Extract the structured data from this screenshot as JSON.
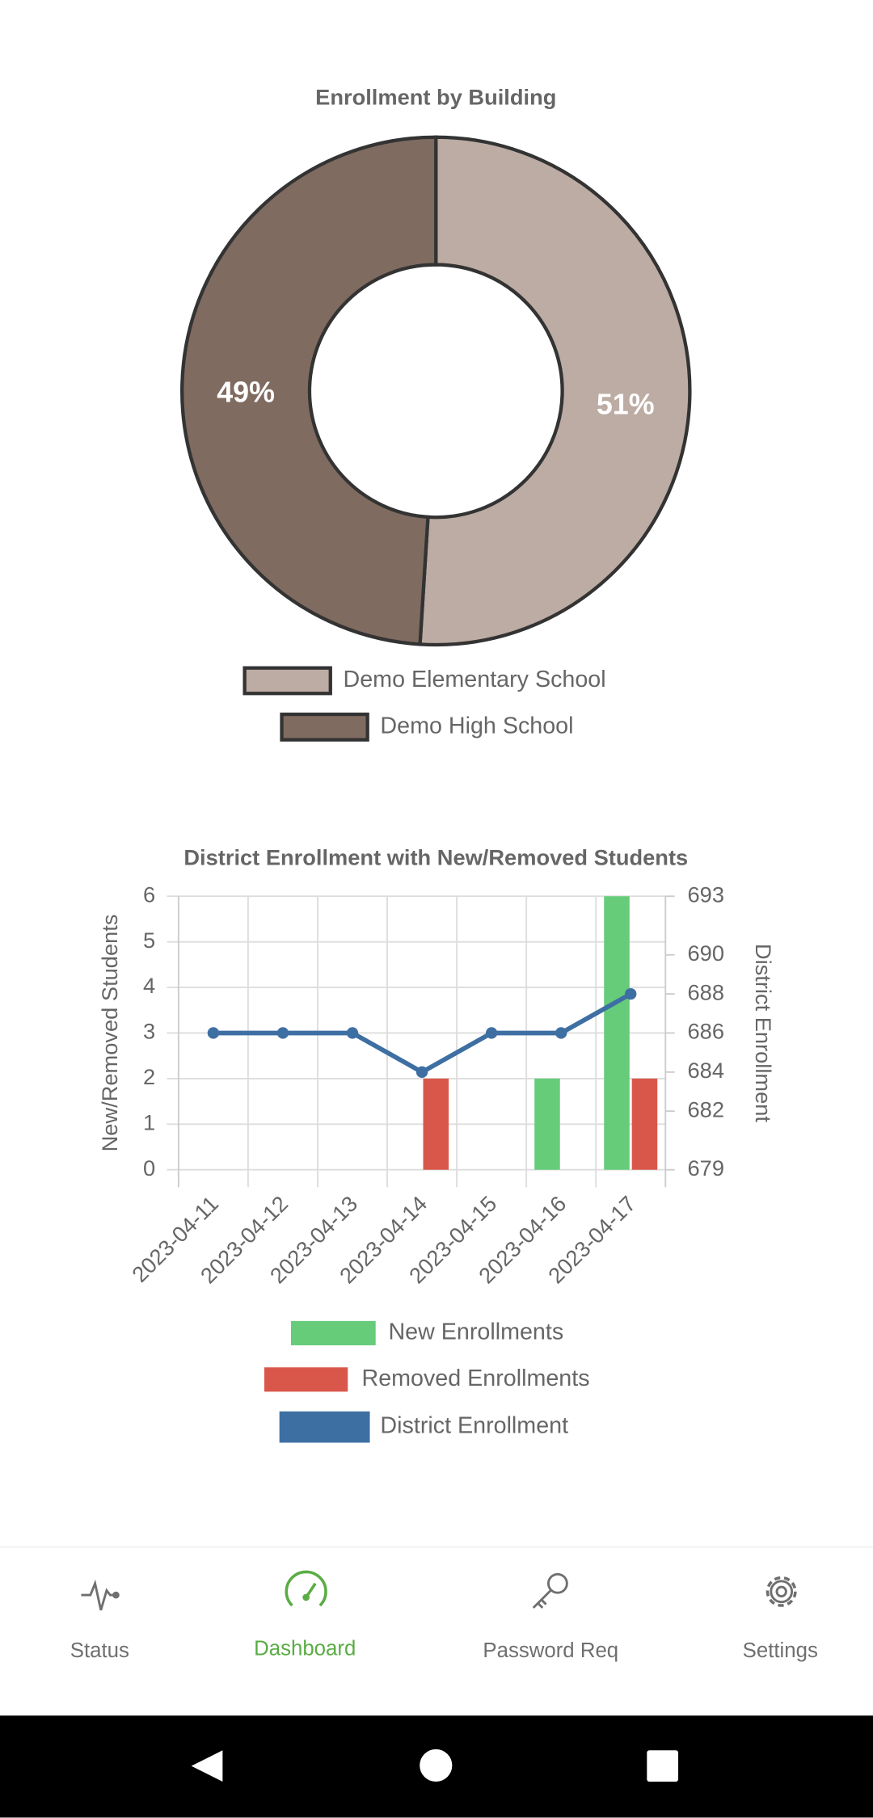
{
  "chart_data": [
    {
      "type": "doughnut",
      "title": "Enrollment by Building",
      "categories": [
        "Demo Elementary School",
        "Demo High School"
      ],
      "values": [
        51,
        49
      ],
      "value_labels": [
        "51%",
        "49%"
      ],
      "colors": [
        "#bcaca3",
        "#7f6b60"
      ]
    },
    {
      "type": "bar",
      "title": "District Enrollment with New/Removed Students",
      "categories": [
        "2023-04-11",
        "2023-04-12",
        "2023-04-13",
        "2023-04-14",
        "2023-04-15",
        "2023-04-16",
        "2023-04-17"
      ],
      "ylabel": "New/Removed Students",
      "y2label": "District Enrollment",
      "ylim": [
        0,
        6
      ],
      "yticks": [
        0,
        1,
        2,
        3,
        4,
        5,
        6
      ],
      "y2lim": [
        679,
        693
      ],
      "y2ticks": [
        679,
        682,
        684,
        686,
        688,
        690,
        693
      ],
      "grid": true,
      "series": [
        {
          "name": "New Enrollments",
          "color": "#66cc7a",
          "values": [
            0,
            0,
            0,
            0,
            0,
            2,
            6
          ]
        },
        {
          "name": "Removed Enrollments",
          "color": "#d9574a",
          "values": [
            0,
            0,
            0,
            2,
            0,
            0,
            2
          ]
        },
        {
          "name": "District Enrollment",
          "color": "#3e6fa3",
          "type": "line",
          "axis": "y2",
          "values": [
            686,
            686,
            686,
            684,
            686,
            686,
            688
          ]
        }
      ]
    }
  ],
  "nav": {
    "items": [
      "Status",
      "Dashboard",
      "Password Req",
      "Settings"
    ]
  }
}
